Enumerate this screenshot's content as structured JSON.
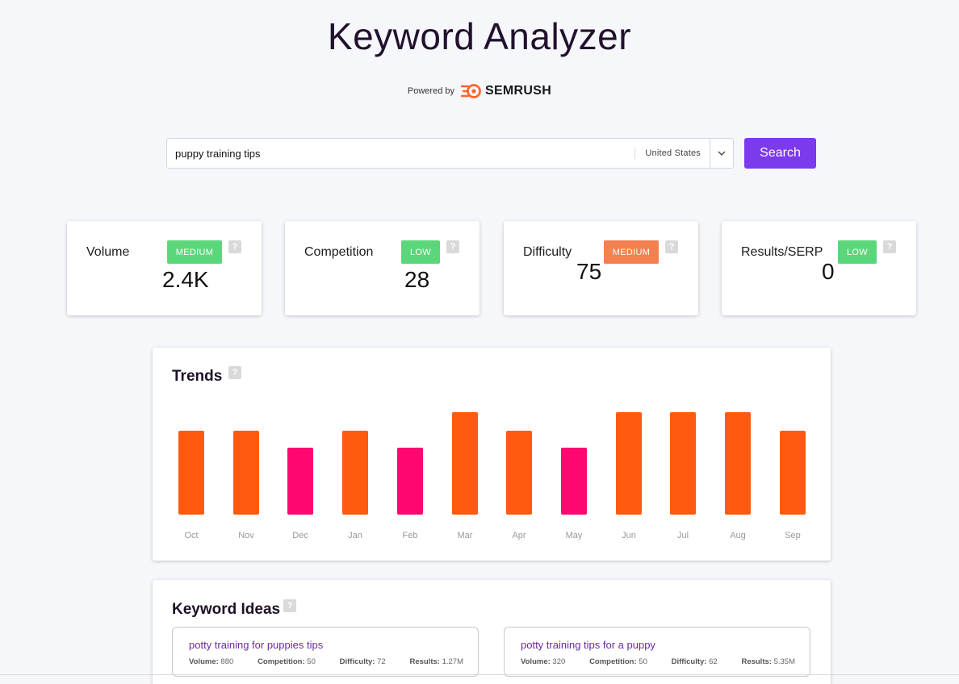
{
  "header": {
    "title": "Keyword Analyzer",
    "powered_by": "Powered by",
    "brand": "SEMRUSH",
    "brand_color": "#ff642d"
  },
  "search": {
    "query": "puppy training tips",
    "country": "United States",
    "button_label": "Search",
    "button_color": "#7c3aed"
  },
  "metrics": [
    {
      "label": "Volume",
      "value": "2.4K",
      "badge": "MEDIUM",
      "badge_color": "#5cd67a",
      "help": "?"
    },
    {
      "label": "Competition",
      "value": "28",
      "badge": "LOW",
      "badge_color": "#5cd67a",
      "help": "?"
    },
    {
      "label": "Difficulty",
      "value": "75",
      "badge": "MEDIUM",
      "badge_color": "#f2814f",
      "help": "?"
    },
    {
      "label": "Results/SERP",
      "value": "0",
      "badge": "LOW",
      "badge_color": "#5cd67a",
      "help": "?"
    }
  ],
  "trends": {
    "title": "Trends",
    "help": "?",
    "colors": {
      "normal": "#ff5a0f",
      "low": "#ff0872"
    }
  },
  "chart_data": {
    "type": "bar",
    "categories": [
      "Oct",
      "Nov",
      "Dec",
      "Jan",
      "Feb",
      "Mar",
      "Apr",
      "May",
      "Jun",
      "Jul",
      "Aug",
      "Sep"
    ],
    "values": [
      0.82,
      0.82,
      0.65,
      0.82,
      0.65,
      1.0,
      0.82,
      0.65,
      1.0,
      1.0,
      1.0,
      0.82
    ],
    "highlight": [
      "normal",
      "normal",
      "low",
      "normal",
      "low",
      "normal",
      "normal",
      "low",
      "normal",
      "normal",
      "normal",
      "normal"
    ],
    "ylim": [
      0,
      1
    ]
  },
  "ideas": {
    "title": "Keyword Ideas",
    "help": "?",
    "stat_labels": {
      "volume": "Volume:",
      "competition": "Competition:",
      "difficulty": "Difficulty:",
      "results": "Results:"
    },
    "items": [
      {
        "keyword": "potty training for puppies tips",
        "volume": "880",
        "competition": "50",
        "difficulty": "72",
        "results": "1.27M"
      },
      {
        "keyword": "potty training tips for a puppy",
        "volume": "320",
        "competition": "50",
        "difficulty": "62",
        "results": "5.35M"
      }
    ]
  }
}
